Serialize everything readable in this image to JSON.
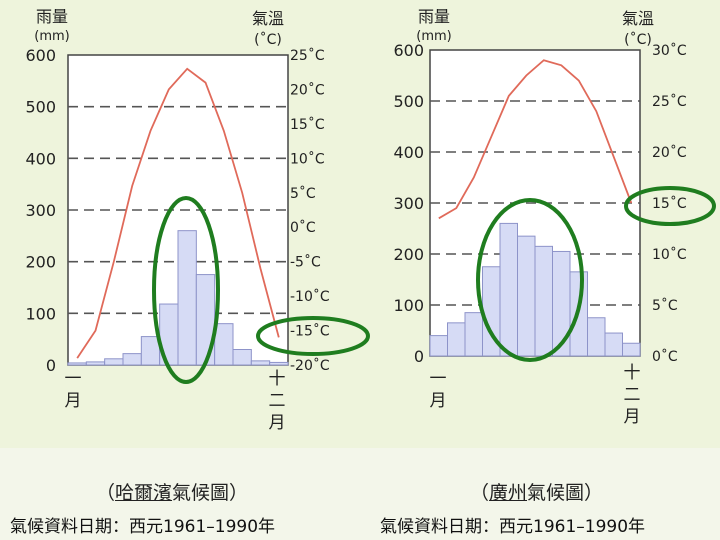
{
  "charts": [
    {
      "city": "哈爾濱",
      "caption_open": "（",
      "caption_title": "氣候圖",
      "caption_close": "）",
      "footer": "氣候資料日期：西元1961–1990年"
    },
    {
      "city": "廣州",
      "caption_open": "（",
      "caption_title": "氣候圖",
      "caption_close": "）",
      "footer": "氣候資料日期：西元1961–1990年"
    }
  ],
  "colors": {
    "background": "#eef4dc",
    "plot_fill": "#ffffff",
    "bar_fill": "#d6dbf5",
    "bar_stroke": "#8d93c9",
    "line": "#e06a5a",
    "grid": "#555555",
    "ellipse": "#1f7d1f"
  },
  "chart_data": [
    {
      "type": "bar+line",
      "title": "（哈爾濱氣候圖）",
      "left_axis_title": [
        "雨量",
        "(mm)"
      ],
      "right_axis_title": [
        "氣溫",
        "(˚C)"
      ],
      "x_start_label": [
        "一",
        "月"
      ],
      "x_end_label": [
        "十",
        "二",
        "月"
      ],
      "left_ticks": [
        "0",
        "100",
        "200",
        "300",
        "400",
        "500",
        "600"
      ],
      "right_ticks": [
        "-20˚C",
        "-15˚C",
        "-10˚C",
        "-5˚C",
        "0˚C",
        "5˚C",
        "10˚C",
        "15˚C",
        "20˚C",
        "25˚C"
      ],
      "ylim_left": [
        0,
        600
      ],
      "ylim_right": [
        -20,
        25
      ],
      "rain_mm": [
        4,
        6,
        12,
        22,
        55,
        118,
        260,
        175,
        80,
        30,
        8,
        5
      ],
      "temp_c": [
        -19,
        -15,
        -5,
        6,
        14,
        20,
        23,
        21,
        14,
        5,
        -6,
        -16
      ],
      "highlights": [
        "rain bars Jun–Aug circled",
        "-15˚C label circled"
      ]
    },
    {
      "type": "bar+line",
      "title": "（廣州氣候圖）",
      "left_axis_title": [
        "雨量",
        "(mm)"
      ],
      "right_axis_title": [
        "氣溫",
        "(˚C)"
      ],
      "x_start_label": [
        "一",
        "月"
      ],
      "x_end_label": [
        "十",
        "二",
        "月"
      ],
      "left_ticks": [
        "0",
        "100",
        "200",
        "300",
        "400",
        "500",
        "600"
      ],
      "right_ticks": [
        "0˚C",
        "5˚C",
        "10˚C",
        "15˚C",
        "20˚C",
        "25˚C",
        "30˚C"
      ],
      "ylim_left": [
        0,
        600
      ],
      "ylim_right": [
        0,
        30
      ],
      "rain_mm": [
        40,
        65,
        85,
        175,
        260,
        235,
        215,
        205,
        165,
        75,
        45,
        25
      ],
      "temp_c": [
        13.5,
        14.5,
        17.5,
        21.5,
        25.5,
        27.5,
        29,
        28.5,
        27,
        24,
        19.5,
        15
      ],
      "highlights": [
        "rain bars Apr–Aug circled",
        "15˚C label circled"
      ]
    }
  ]
}
